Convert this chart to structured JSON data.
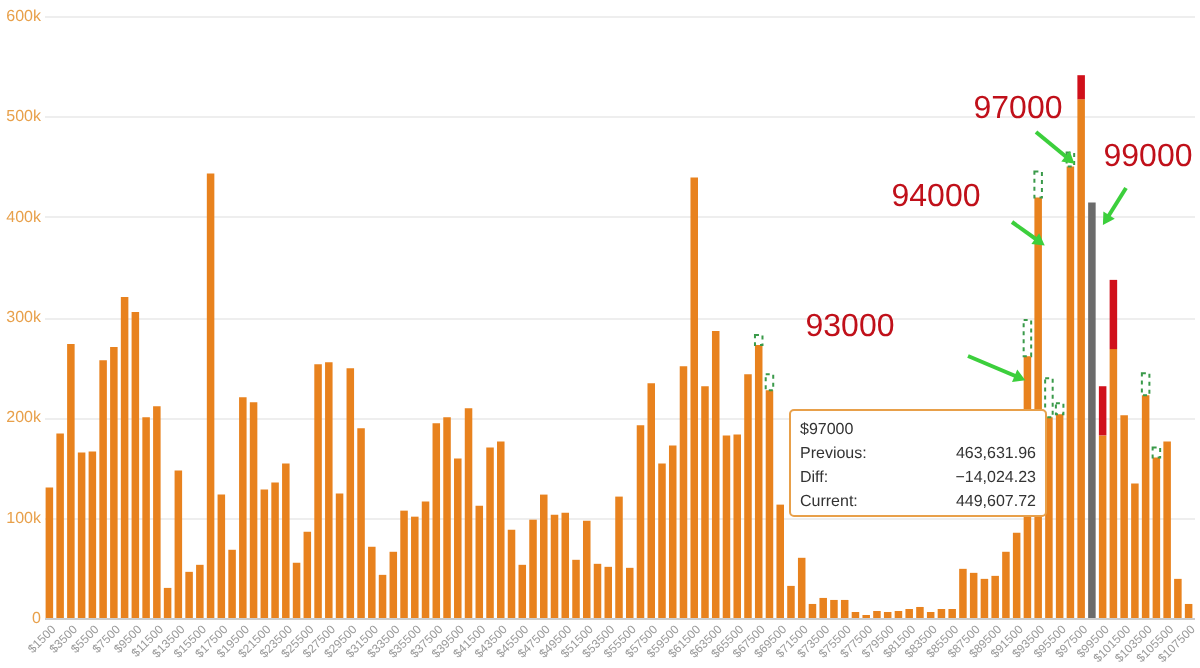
{
  "chart_data": {
    "type": "bar",
    "stacked": true,
    "grid": "y",
    "categories": [
      "$1500",
      null,
      "$3500",
      null,
      "$5500",
      null,
      "$7500",
      null,
      "$9500",
      null,
      "$11500",
      null,
      "$13500",
      null,
      "$15500",
      null,
      "$17500",
      null,
      "$19500",
      null,
      "$21500",
      null,
      "$23500",
      null,
      "$25500",
      null,
      "$27500",
      null,
      "$29500",
      null,
      "$31500",
      null,
      "$33500",
      null,
      "$35500",
      null,
      "$37500",
      null,
      "$39500",
      null,
      "$41500",
      null,
      "$43500",
      null,
      "$45500",
      null,
      "$47500",
      null,
      "$49500",
      null,
      "$51500",
      null,
      "$53500",
      null,
      "$55500",
      null,
      "$57500",
      null,
      "$59500",
      null,
      "$61500",
      null,
      "$63500",
      null,
      "$65500",
      null,
      "$67500",
      null,
      "$69500",
      null,
      "$71500",
      null,
      "$73500",
      null,
      "$75500",
      null,
      "$77500",
      null,
      "$79500",
      null,
      "$81500",
      null,
      "$83500",
      null,
      "$85500",
      null,
      "$87500",
      null,
      "$89500",
      null,
      "$91500",
      null,
      "$93500",
      null,
      "$95500",
      null,
      "$97500",
      null,
      "$99500",
      null,
      "$101500",
      null,
      "$103500",
      null,
      "$105500",
      null,
      "$107500"
    ],
    "series": [
      {
        "colors": [
          "#e8821e",
          "#e8821e",
          "#e8821e",
          "#e8821e",
          "#e8821e",
          "#e8821e",
          "#e8821e",
          "#e8821e",
          "#e8821e",
          "#e8821e",
          "#e8821e",
          "#e8821e",
          "#e8821e",
          "#e8821e",
          "#e8821e",
          "#e8821e",
          "#e8821e",
          "#e8821e",
          "#e8821e",
          "#e8821e",
          "#e8821e",
          "#e8821e",
          "#e8821e",
          "#e8821e",
          "#e8821e",
          "#e8821e",
          "#e8821e",
          "#e8821e",
          "#e8821e",
          "#e8821e",
          "#e8821e",
          "#e8821e",
          "#e8821e",
          "#e8821e",
          "#e8821e",
          "#e8821e",
          "#e8821e",
          "#e8821e",
          "#e8821e",
          "#e8821e",
          "#e8821e",
          "#e8821e",
          "#e8821e",
          "#e8821e",
          "#e8821e",
          "#e8821e",
          "#e8821e",
          "#e8821e",
          "#e8821e",
          "#e8821e",
          "#e8821e",
          "#e8821e",
          "#e8821e",
          "#e8821e",
          "#e8821e",
          "#e8821e",
          "#e8821e",
          "#e8821e",
          "#e8821e",
          "#e8821e",
          "#e8821e",
          "#e8821e",
          "#e8821e",
          "#e8821e",
          "#e8821e",
          "#e8821e",
          "#e8821e",
          "#e8821e",
          "#e8821e",
          "#e8821e",
          "#e8821e",
          "#e8821e",
          "#e8821e",
          "#e8821e",
          "#e8821e",
          "#e8821e",
          "#e8821e",
          "#e8821e",
          "#e8821e",
          "#e8821e",
          "#e8821e",
          "#e8821e",
          "#e8821e",
          "#e8821e",
          "#e8821e",
          "#e8821e",
          "#e8821e",
          "#e8821e",
          "#e8821e",
          "#e8821e",
          "#e8821e",
          "#e8821e",
          "#e8821e",
          "#e8821e",
          "#e8821e",
          "#e8821e",
          "#e8821e",
          "#6b6b6b",
          "#e8821e",
          "#e8821e",
          "#e8821e",
          "#e8821e",
          "#e8821e",
          "#e8821e",
          "#e8821e",
          "#e8821e",
          "#e8821e"
        ],
        "values": [
          130000,
          184000,
          273000,
          165000,
          166000,
          257000,
          270000,
          320000,
          305000,
          200000,
          211000,
          30000,
          147000,
          46000,
          53000,
          443000,
          123000,
          68000,
          220000,
          215000,
          128000,
          135000,
          154000,
          55000,
          86000,
          253000,
          255000,
          124000,
          249000,
          189000,
          71000,
          43000,
          66000,
          107000,
          101000,
          116000,
          194000,
          200000,
          159000,
          209000,
          112000,
          170000,
          176000,
          88000,
          53000,
          98000,
          123000,
          103000,
          105000,
          58000,
          97000,
          54000,
          51000,
          121000,
          50000,
          192000,
          234000,
          154000,
          172000,
          251000,
          439000,
          231000,
          286000,
          182000,
          183000,
          243000,
          272000,
          227000,
          113000,
          32000,
          60000,
          14000,
          20000,
          18000,
          18000,
          6000,
          3000,
          7000,
          6000,
          7000,
          9000,
          11000,
          6000,
          9000,
          9000,
          49000,
          45000,
          39000,
          42000,
          66000,
          85000,
          261000,
          419000,
          200000,
          203000,
          450000,
          517000,
          414000,
          182000,
          268000,
          202000,
          134000,
          222000,
          160000,
          176000,
          39000,
          14000
        ]
      },
      {
        "color": "#d0101a",
        "values": [
          null,
          null,
          null,
          null,
          null,
          null,
          null,
          null,
          null,
          null,
          null,
          null,
          null,
          null,
          null,
          null,
          null,
          null,
          null,
          null,
          null,
          null,
          null,
          null,
          null,
          null,
          null,
          null,
          null,
          null,
          null,
          null,
          null,
          null,
          null,
          null,
          null,
          null,
          null,
          null,
          null,
          null,
          null,
          null,
          null,
          null,
          null,
          null,
          null,
          null,
          null,
          null,
          null,
          null,
          null,
          null,
          null,
          null,
          null,
          null,
          null,
          null,
          null,
          null,
          null,
          null,
          null,
          null,
          null,
          null,
          null,
          null,
          null,
          null,
          null,
          null,
          null,
          null,
          null,
          null,
          null,
          null,
          null,
          null,
          null,
          null,
          null,
          null,
          null,
          null,
          null,
          null,
          null,
          null,
          null,
          null,
          24000,
          null,
          49000,
          69000,
          null,
          null,
          null,
          null,
          null,
          null,
          null
        ]
      },
      {
        "color": "#3a9a4a",
        "line_style": "dashed",
        "values": [
          null,
          null,
          null,
          null,
          null,
          null,
          null,
          null,
          null,
          null,
          null,
          null,
          null,
          null,
          null,
          null,
          null,
          null,
          null,
          null,
          null,
          null,
          null,
          null,
          null,
          null,
          null,
          null,
          null,
          null,
          null,
          null,
          null,
          null,
          null,
          null,
          null,
          null,
          null,
          null,
          null,
          null,
          null,
          null,
          null,
          null,
          null,
          null,
          null,
          null,
          null,
          null,
          null,
          null,
          null,
          null,
          null,
          null,
          null,
          null,
          null,
          null,
          null,
          null,
          null,
          null,
          10000,
          16000,
          null,
          null,
          null,
          null,
          null,
          null,
          null,
          null,
          null,
          null,
          null,
          null,
          null,
          null,
          null,
          null,
          null,
          null,
          null,
          null,
          null,
          null,
          null,
          36000,
          26000,
          39000,
          11000,
          14000,
          null,
          null,
          null,
          null,
          null,
          null,
          22000,
          10000,
          null,
          null,
          null
        ]
      }
    ],
    "ylim": [
      0,
      600000
    ],
    "yticks": [
      0,
      {
        "value": 100000,
        "label": "100k"
      },
      {
        "value": 200000,
        "label": "200k"
      },
      {
        "value": 300000,
        "label": "300k"
      },
      {
        "value": 400000,
        "label": "400k"
      },
      {
        "value": 500000,
        "label": "500k"
      },
      {
        "value": 600000,
        "label": "600k"
      }
    ],
    "annotations": [
      "97000",
      "94000",
      "93000",
      "99000",
      "$97000",
      "Previous:",
      "463,631.96",
      "Diff:",
      "−14,024.23",
      "Current:",
      "449,607.72"
    ]
  }
}
